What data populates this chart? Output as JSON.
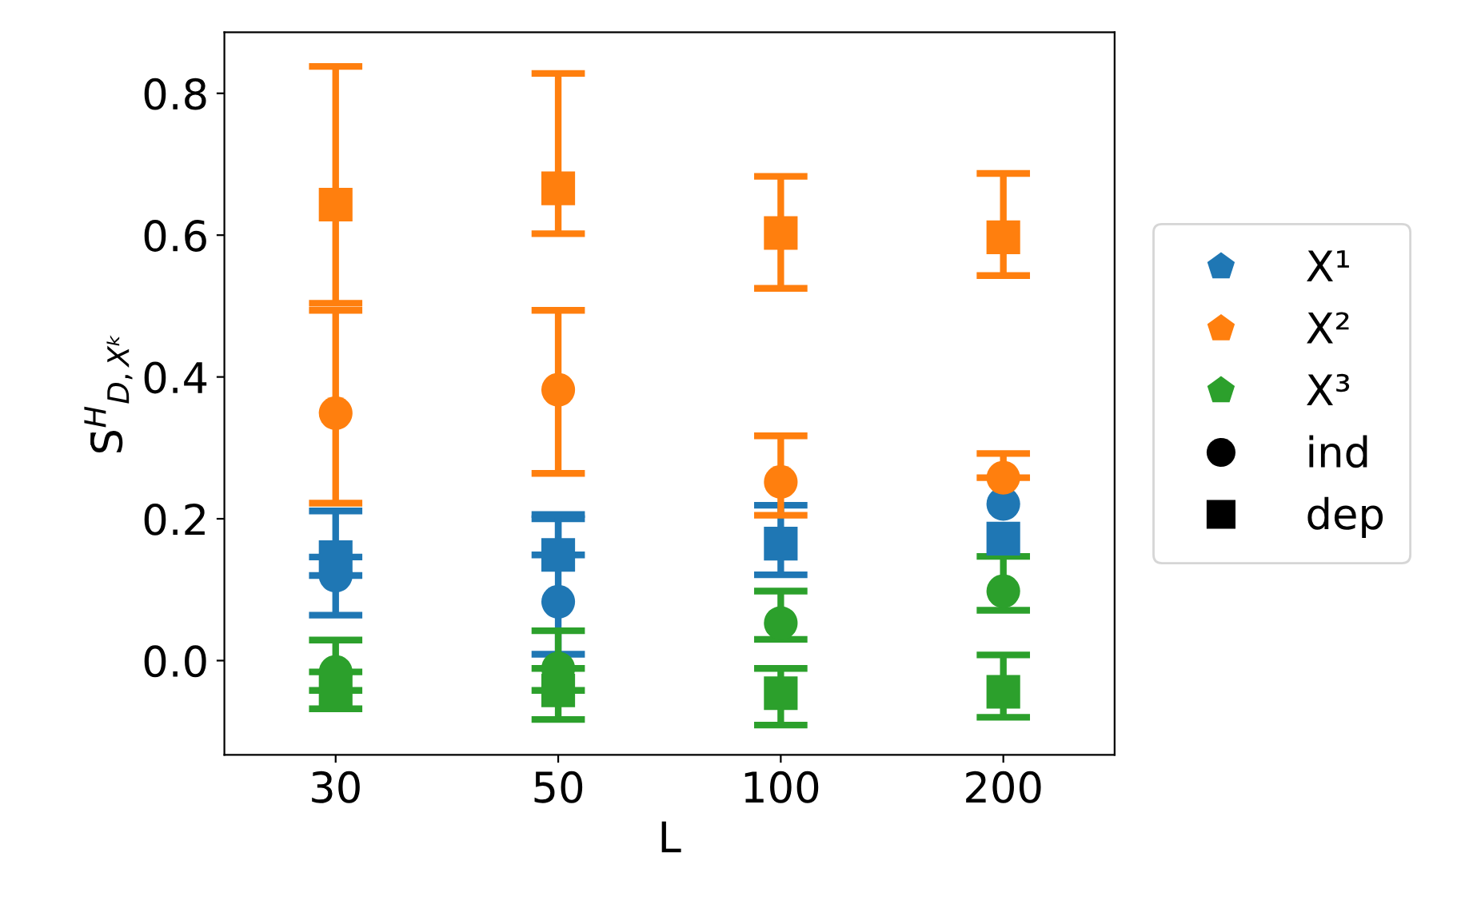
{
  "chart_data": {
    "type": "scatter",
    "xlabel": "L",
    "ylabel": "S̄$^{H}$$_{D,Xᵏ}$",
    "categories": [
      "30",
      "50",
      "100",
      "200"
    ],
    "ylim": [
      -0.133,
      0.886
    ],
    "yticks": [
      {
        "value": 0.0,
        "label": "0.0"
      },
      0.2,
      0.4,
      0.6,
      0.8
    ],
    "grid": false,
    "legend": "right",
    "series": [
      {
        "color": "#1f77b4",
        "marker": "circle",
        "values": [
          0.12,
          0.083,
          null,
          0.221
        ],
        "errors": [
          [
            0.064,
            0.12
          ],
          [
            0.009,
            0.2
          ],
          null,
          null
        ]
      },
      {
        "color": "#1f77b4",
        "marker": "square",
        "values": [
          0.146,
          0.149,
          0.165,
          0.172
        ],
        "errors": [
          [
            0.146,
            0.211
          ],
          [
            0.149,
            0.206
          ],
          [
            0.121,
            0.219
          ],
          null
        ]
      },
      {
        "color": "#2ca02c",
        "marker": "circle",
        "values": [
          -0.016,
          -0.011,
          0.053,
          0.098
        ],
        "errors": [
          [
            -0.016,
            0.029
          ],
          [
            -0.011,
            0.042
          ],
          [
            0.03,
            0.098
          ],
          [
            0.071,
            0.147
          ]
        ]
      },
      {
        "color": "#2ca02c",
        "marker": "square",
        "values": [
          -0.042,
          -0.042,
          -0.046,
          -0.044
        ],
        "errors": [
          [
            -0.068,
            -0.042
          ],
          [
            -0.083,
            -0.042
          ],
          [
            -0.091,
            -0.011
          ],
          [
            -0.08,
            0.008
          ]
        ]
      },
      {
        "color": "#ff7f0e",
        "marker": "circle",
        "values": [
          0.349,
          0.382,
          0.252,
          0.258
        ],
        "errors": [
          [
            0.222,
            0.494
          ],
          [
            0.264,
            0.494
          ],
          [
            0.205,
            0.317
          ],
          [
            0.258,
            0.292
          ]
        ]
      },
      {
        "color": "#ff7f0e",
        "marker": "square",
        "values": [
          0.643,
          0.666,
          0.603,
          0.597
        ],
        "errors": [
          [
            0.504,
            0.838
          ],
          [
            0.602,
            0.828
          ],
          [
            0.525,
            0.683
          ],
          [
            0.543,
            0.687
          ]
        ]
      },
      {
        "name": "X¹",
        "color": "#1f77b4",
        "marker": "pentagon",
        "values": [
          null,
          null,
          null,
          null
        ]
      },
      {
        "name": "X²",
        "color": "#ff7f0e",
        "marker": "pentagon",
        "values": [
          null,
          null,
          null,
          null
        ]
      },
      {
        "name": "X³",
        "color": "#2ca02c",
        "marker": "pentagon",
        "values": [
          null,
          null,
          null,
          null
        ]
      },
      {
        "name": "ind",
        "color": "#000000",
        "marker": "circle",
        "values": [
          null,
          null,
          null,
          null
        ]
      },
      {
        "name": "dep",
        "color": "#000000",
        "marker": "square",
        "values": [
          null,
          null,
          null,
          null
        ]
      }
    ]
  }
}
